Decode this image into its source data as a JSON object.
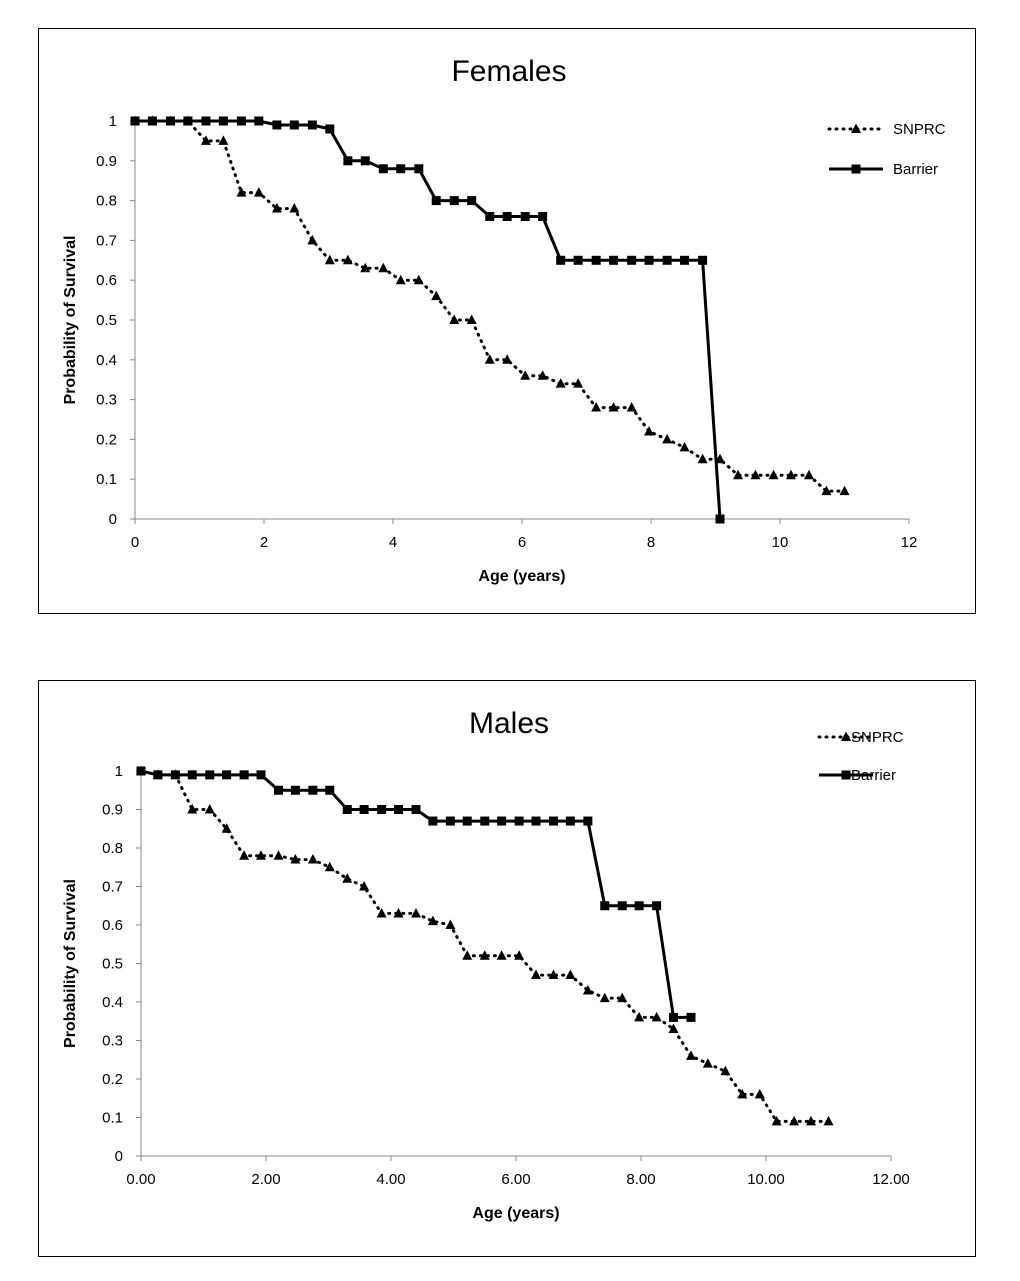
{
  "chart_data": [
    {
      "type": "line",
      "title": "Females",
      "xlabel": "Age (years)",
      "ylabel": "Probability of Survival",
      "xlim": [
        0,
        12
      ],
      "ylim": [
        0,
        1
      ],
      "xticks": [
        0,
        2,
        4,
        6,
        8,
        10,
        12
      ],
      "xtick_labels": [
        "0",
        "2",
        "4",
        "6",
        "8",
        "10",
        "12"
      ],
      "yticks": [
        0,
        0.1,
        0.2,
        0.3,
        0.4,
        0.5,
        0.6,
        0.7,
        0.8,
        0.9,
        1
      ],
      "ytick_labels": [
        "0",
        "0.1",
        "0.2",
        "0.3",
        "0.4",
        "0.5",
        "0.6",
        "0.7",
        "0.8",
        "0.9",
        "1"
      ],
      "grid": false,
      "legend_position": "top-right",
      "series": [
        {
          "name": "SNPRC",
          "line_style": "dotted",
          "marker": "triangle",
          "color": "#000000",
          "x": [
            0,
            0.27,
            0.55,
            0.82,
            1.1,
            1.37,
            1.65,
            1.92,
            2.2,
            2.47,
            2.75,
            3.02,
            3.3,
            3.57,
            3.85,
            4.12,
            4.4,
            4.67,
            4.95,
            5.22,
            5.5,
            5.77,
            6.05,
            6.32,
            6.6,
            6.87,
            7.15,
            7.42,
            7.7,
            7.97,
            8.25,
            8.52,
            8.8,
            9.07,
            9.35,
            9.62,
            9.9,
            10.17,
            10.45,
            10.72,
            11.0
          ],
          "y": [
            1,
            1,
            1,
            1,
            0.95,
            0.95,
            0.82,
            0.82,
            0.78,
            0.78,
            0.7,
            0.65,
            0.65,
            0.63,
            0.63,
            0.6,
            0.6,
            0.56,
            0.5,
            0.5,
            0.4,
            0.4,
            0.36,
            0.36,
            0.34,
            0.34,
            0.28,
            0.28,
            0.28,
            0.22,
            0.2,
            0.18,
            0.15,
            0.15,
            0.11,
            0.11,
            0.11,
            0.11,
            0.11,
            0.07,
            0.07
          ]
        },
        {
          "name": "Barrier",
          "line_style": "solid",
          "marker": "square",
          "color": "#000000",
          "x": [
            0,
            0.27,
            0.55,
            0.82,
            1.1,
            1.37,
            1.65,
            1.92,
            2.2,
            2.47,
            2.75,
            3.02,
            3.3,
            3.57,
            3.85,
            4.12,
            4.4,
            4.67,
            4.95,
            5.22,
            5.5,
            5.77,
            6.05,
            6.32,
            6.6,
            6.87,
            7.15,
            7.42,
            7.7,
            7.97,
            8.25,
            8.52,
            8.8,
            9.07
          ],
          "y": [
            1,
            1,
            1,
            1,
            1,
            1,
            1,
            1,
            0.99,
            0.99,
            0.99,
            0.98,
            0.9,
            0.9,
            0.88,
            0.88,
            0.88,
            0.8,
            0.8,
            0.8,
            0.76,
            0.76,
            0.76,
            0.76,
            0.65,
            0.65,
            0.65,
            0.65,
            0.65,
            0.65,
            0.65,
            0.65,
            0.65,
            0
          ]
        }
      ]
    },
    {
      "type": "line",
      "title": "Males",
      "xlabel": "Age (years)",
      "ylabel": "Probability of Survival",
      "xlim": [
        0,
        12
      ],
      "ylim": [
        0,
        1
      ],
      "xticks": [
        0,
        2,
        4,
        6,
        8,
        10,
        12
      ],
      "xtick_labels": [
        "0.00",
        "2.00",
        "4.00",
        "6.00",
        "8.00",
        "10.00",
        "12.00"
      ],
      "yticks": [
        0,
        0.1,
        0.2,
        0.3,
        0.4,
        0.5,
        0.6,
        0.7,
        0.8,
        0.9,
        1
      ],
      "ytick_labels": [
        "0",
        "0.1",
        "0.2",
        "0.3",
        "0.4",
        "0.5",
        "0.6",
        "0.7",
        "0.8",
        "0.9",
        "1"
      ],
      "grid": false,
      "legend_position": "top-right",
      "series": [
        {
          "name": "SNPRC",
          "line_style": "dotted",
          "marker": "triangle",
          "color": "#000000",
          "x": [
            0,
            0.27,
            0.55,
            0.82,
            1.1,
            1.37,
            1.65,
            1.92,
            2.2,
            2.47,
            2.75,
            3.02,
            3.3,
            3.57,
            3.85,
            4.12,
            4.4,
            4.67,
            4.95,
            5.22,
            5.5,
            5.77,
            6.05,
            6.32,
            6.6,
            6.87,
            7.15,
            7.42,
            7.7,
            7.97,
            8.25,
            8.52,
            8.8,
            9.07,
            9.35,
            9.62,
            9.9,
            10.17,
            10.45,
            10.72,
            11.0
          ],
          "y": [
            1,
            0.99,
            0.99,
            0.9,
            0.9,
            0.85,
            0.78,
            0.78,
            0.78,
            0.77,
            0.77,
            0.75,
            0.72,
            0.7,
            0.63,
            0.63,
            0.63,
            0.61,
            0.6,
            0.52,
            0.52,
            0.52,
            0.52,
            0.47,
            0.47,
            0.47,
            0.43,
            0.41,
            0.41,
            0.36,
            0.36,
            0.33,
            0.26,
            0.24,
            0.22,
            0.16,
            0.16,
            0.09,
            0.09,
            0.09,
            0.09
          ]
        },
        {
          "name": "Barrier",
          "line_style": "solid",
          "marker": "square",
          "color": "#000000",
          "x": [
            0,
            0.27,
            0.55,
            0.82,
            1.1,
            1.37,
            1.65,
            1.92,
            2.2,
            2.47,
            2.75,
            3.02,
            3.3,
            3.57,
            3.85,
            4.12,
            4.4,
            4.67,
            4.95,
            5.22,
            5.5,
            5.77,
            6.05,
            6.32,
            6.6,
            6.87,
            7.15,
            7.42,
            7.7,
            7.97,
            8.25,
            8.52,
            8.8
          ],
          "y": [
            1,
            0.99,
            0.99,
            0.99,
            0.99,
            0.99,
            0.99,
            0.99,
            0.95,
            0.95,
            0.95,
            0.95,
            0.9,
            0.9,
            0.9,
            0.9,
            0.9,
            0.87,
            0.87,
            0.87,
            0.87,
            0.87,
            0.87,
            0.87,
            0.87,
            0.87,
            0.87,
            0.65,
            0.65,
            0.65,
            0.65,
            0.36,
            0.36
          ]
        }
      ]
    }
  ]
}
